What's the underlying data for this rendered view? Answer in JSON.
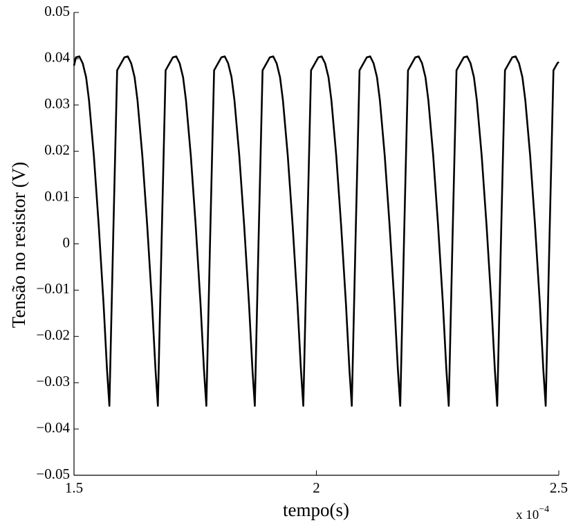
{
  "chart_data": {
    "type": "line",
    "xlabel": "tempo(s)",
    "ylabel": "Tensão no resistor (V)",
    "x_multiplier": {
      "base": "x 10",
      "exponent": "−4"
    },
    "xlim": [
      1.5,
      2.5
    ],
    "xticks": [
      1.5,
      2,
      2.5
    ],
    "ylim": [
      -0.05,
      0.05
    ],
    "yticks": [
      0.05,
      0.04,
      0.03,
      0.02,
      0.01,
      0,
      {
        "value": -0.01,
        "label": "−0.01"
      },
      {
        "value": -0.02,
        "label": "−0.02"
      },
      {
        "value": -0.03,
        "label": "−0.03"
      },
      {
        "value": -0.04,
        "label": "−0.04"
      },
      {
        "value": -0.05,
        "label": "−0.05"
      }
    ],
    "grid": false,
    "x": [
      1.5,
      1.504,
      1.511,
      1.518,
      1.525,
      1.531,
      1.541,
      1.551,
      1.561,
      1.568,
      1.573,
      1.581,
      1.589,
      1.597,
      1.604,
      1.611,
      1.618,
      1.625,
      1.631,
      1.641,
      1.651,
      1.661,
      1.668,
      1.673,
      1.681,
      1.689,
      1.697,
      1.704,
      1.711,
      1.718,
      1.725,
      1.731,
      1.741,
      1.751,
      1.761,
      1.768,
      1.773,
      1.781,
      1.789,
      1.797,
      1.804,
      1.811,
      1.818,
      1.825,
      1.831,
      1.841,
      1.851,
      1.861,
      1.868,
      1.873,
      1.881,
      1.889,
      1.897,
      1.904,
      1.911,
      1.918,
      1.925,
      1.931,
      1.941,
      1.951,
      1.961,
      1.968,
      1.973,
      1.981,
      1.989,
      1.997,
      2.004,
      2.011,
      2.018,
      2.025,
      2.031,
      2.041,
      2.051,
      2.061,
      2.068,
      2.073,
      2.081,
      2.089,
      2.097,
      2.104,
      2.111,
      2.118,
      2.125,
      2.131,
      2.141,
      2.151,
      2.161,
      2.168,
      2.173,
      2.181,
      2.189,
      2.197,
      2.204,
      2.211,
      2.218,
      2.225,
      2.231,
      2.241,
      2.251,
      2.261,
      2.268,
      2.273,
      2.281,
      2.289,
      2.297,
      2.304,
      2.311,
      2.318,
      2.325,
      2.331,
      2.341,
      2.351,
      2.361,
      2.368,
      2.373,
      2.381,
      2.389,
      2.397,
      2.404,
      2.411,
      2.418,
      2.425,
      2.431,
      2.441,
      2.451,
      2.461,
      2.468,
      2.473,
      2.481,
      2.489,
      2.497,
      2.5
    ],
    "series": [
      {
        "color": "#000000",
        "values": [
          0.0385,
          0.0403,
          0.0405,
          0.039,
          0.036,
          0.031,
          0.019,
          0.004,
          -0.013,
          -0.027,
          -0.035,
          0.002,
          0.0375,
          0.039,
          0.0403,
          0.0405,
          0.039,
          0.036,
          0.031,
          0.019,
          0.004,
          -0.013,
          -0.027,
          -0.035,
          0.002,
          0.0375,
          0.039,
          0.0403,
          0.0405,
          0.039,
          0.036,
          0.031,
          0.019,
          0.004,
          -0.013,
          -0.027,
          -0.035,
          0.002,
          0.0375,
          0.039,
          0.0403,
          0.0405,
          0.039,
          0.036,
          0.031,
          0.019,
          0.004,
          -0.013,
          -0.027,
          -0.035,
          0.002,
          0.0375,
          0.039,
          0.0403,
          0.0405,
          0.039,
          0.036,
          0.031,
          0.019,
          0.004,
          -0.013,
          -0.027,
          -0.035,
          0.002,
          0.0375,
          0.039,
          0.0403,
          0.0405,
          0.039,
          0.036,
          0.031,
          0.019,
          0.004,
          -0.013,
          -0.027,
          -0.035,
          0.002,
          0.0375,
          0.039,
          0.0403,
          0.0405,
          0.039,
          0.036,
          0.031,
          0.019,
          0.004,
          -0.013,
          -0.027,
          -0.035,
          0.002,
          0.0375,
          0.039,
          0.0403,
          0.0405,
          0.039,
          0.036,
          0.031,
          0.019,
          0.004,
          -0.013,
          -0.027,
          -0.035,
          0.002,
          0.0375,
          0.039,
          0.0403,
          0.0405,
          0.039,
          0.036,
          0.031,
          0.019,
          0.004,
          -0.013,
          -0.027,
          -0.035,
          0.002,
          0.0375,
          0.039,
          0.0403,
          0.0405,
          0.039,
          0.036,
          0.031,
          0.019,
          0.004,
          -0.013,
          -0.027,
          -0.035,
          0.002,
          0.0375,
          0.039,
          0.0393
        ]
      }
    ]
  }
}
